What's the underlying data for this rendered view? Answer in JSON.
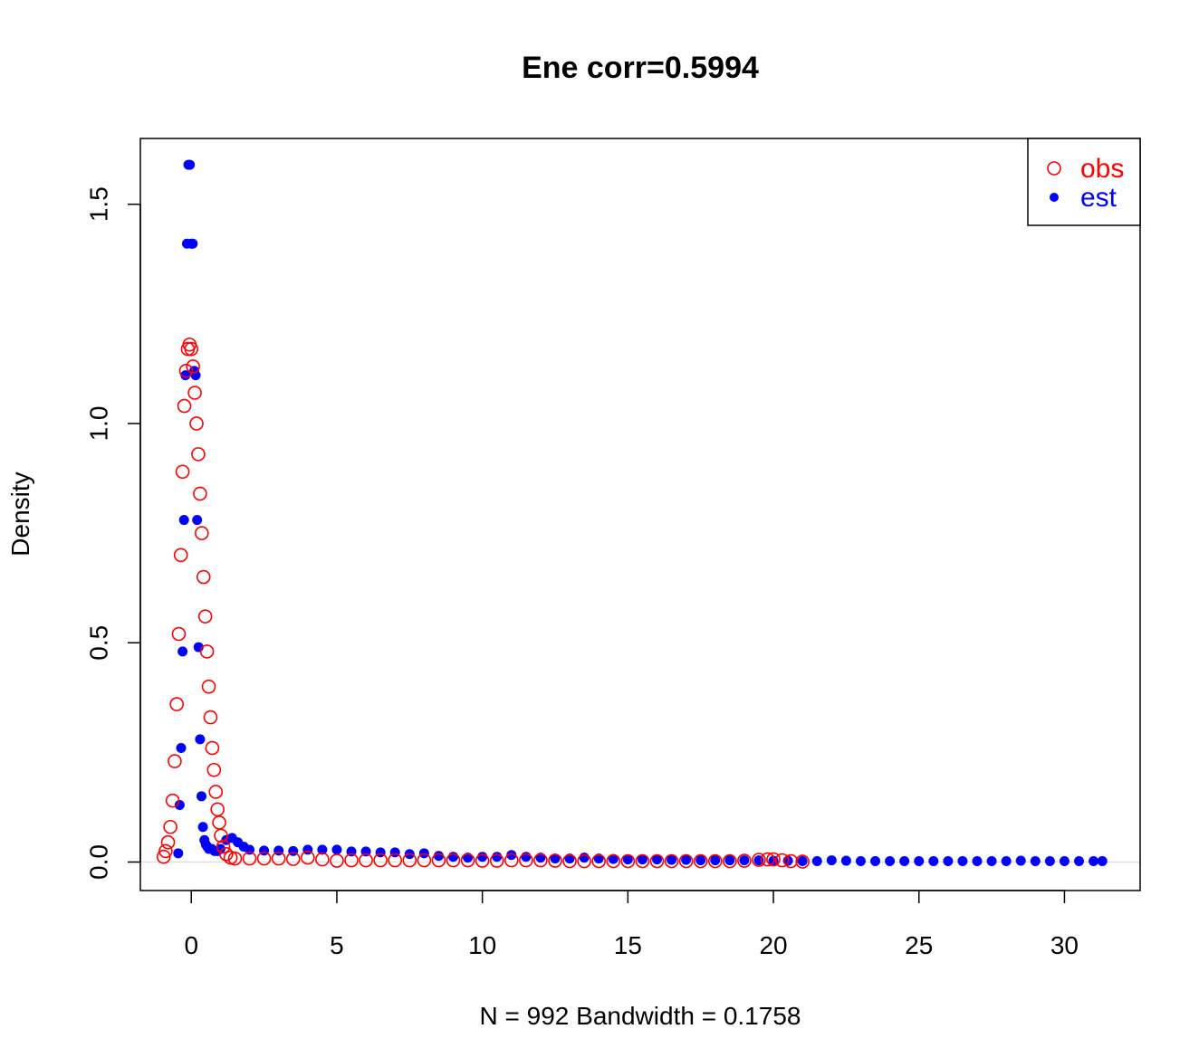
{
  "chart_data": {
    "type": "scatter",
    "title": "Ene corr=0.5994",
    "xlabel": "N = 992   Bandwidth = 0.1758",
    "ylabel": "Density",
    "xlim": [
      -1.75,
      32.6
    ],
    "ylim": [
      -0.065,
      1.65
    ],
    "xticks": [
      0,
      5,
      10,
      15,
      20,
      25,
      30
    ],
    "xtick_labels": [
      "0",
      "5",
      "10",
      "15",
      "20",
      "25",
      "30"
    ],
    "yticks": [
      0.0,
      0.5,
      1.0,
      1.5
    ],
    "ytick_labels": [
      "0.0",
      "0.5",
      "1.0",
      "1.5"
    ],
    "grid": false,
    "legend_position": "top-right",
    "colors": {
      "obs": "#ff0000",
      "est": "#0000ff"
    },
    "series": [
      {
        "name": "obs",
        "marker": "open-circle",
        "x": [
          -0.95,
          -0.88,
          -0.8,
          -0.72,
          -0.64,
          -0.57,
          -0.5,
          -0.43,
          -0.36,
          -0.3,
          -0.24,
          -0.18,
          -0.12,
          -0.06,
          0.0,
          0.06,
          0.12,
          0.18,
          0.24,
          0.3,
          0.36,
          0.42,
          0.48,
          0.54,
          0.6,
          0.66,
          0.72,
          0.78,
          0.84,
          0.9,
          0.96,
          1.02,
          1.1,
          1.2,
          1.35,
          1.5,
          2.0,
          2.5,
          3.0,
          3.5,
          4.0,
          4.5,
          5.0,
          5.5,
          6.0,
          6.5,
          7.0,
          7.5,
          8.0,
          8.5,
          9.0,
          9.5,
          10.0,
          10.5,
          11.0,
          11.5,
          12.0,
          12.5,
          13.0,
          13.5,
          14.0,
          14.5,
          15.0,
          15.5,
          16.0,
          16.5,
          17.0,
          17.5,
          18.0,
          18.5,
          19.0,
          19.5,
          19.8,
          20.0,
          20.3,
          20.6,
          21.0
        ],
        "y": [
          0.012,
          0.025,
          0.045,
          0.08,
          0.14,
          0.23,
          0.36,
          0.52,
          0.7,
          0.89,
          1.04,
          1.12,
          1.17,
          1.18,
          1.17,
          1.13,
          1.07,
          1.0,
          0.93,
          0.84,
          0.75,
          0.65,
          0.56,
          0.48,
          0.4,
          0.33,
          0.26,
          0.21,
          0.16,
          0.12,
          0.09,
          0.06,
          0.035,
          0.018,
          0.01,
          0.008,
          0.008,
          0.008,
          0.008,
          0.007,
          0.01,
          0.006,
          0.003,
          0.004,
          0.004,
          0.004,
          0.004,
          0.004,
          0.004,
          0.004,
          0.004,
          0.004,
          0.003,
          0.003,
          0.004,
          0.004,
          0.004,
          0.003,
          0.002,
          0.002,
          0.002,
          0.002,
          0.002,
          0.002,
          0.002,
          0.002,
          0.002,
          0.002,
          0.002,
          0.002,
          0.003,
          0.005,
          0.006,
          0.006,
          0.004,
          0.002,
          0.001
        ]
      },
      {
        "name": "est",
        "marker": "filled-circle",
        "x": [
          -0.45,
          -0.4,
          -0.35,
          -0.3,
          -0.25,
          -0.2,
          -0.15,
          -0.1,
          -0.05,
          0.0,
          0.05,
          0.1,
          0.15,
          0.2,
          0.25,
          0.3,
          0.35,
          0.4,
          0.45,
          0.5,
          0.55,
          0.6,
          0.7,
          0.8,
          0.9,
          1.0,
          1.2,
          1.4,
          1.6,
          1.8,
          2.0,
          2.5,
          3.0,
          3.5,
          4.0,
          4.5,
          5.0,
          5.5,
          6.0,
          6.5,
          7.0,
          7.5,
          8.0,
          8.5,
          9.0,
          9.5,
          10.0,
          10.5,
          11.0,
          11.5,
          12.0,
          12.5,
          13.0,
          13.5,
          14.0,
          14.5,
          15.0,
          15.5,
          16.0,
          16.5,
          17.0,
          17.5,
          18.0,
          18.5,
          19.0,
          19.5,
          20.0,
          20.5,
          21.0,
          21.5,
          22.0,
          22.5,
          23.0,
          23.5,
          24.0,
          24.5,
          25.0,
          25.5,
          26.0,
          26.5,
          27.0,
          27.5,
          28.0,
          28.5,
          29.0,
          29.5,
          30.0,
          30.5,
          31.0,
          31.3
        ],
        "y": [
          0.02,
          0.13,
          0.26,
          0.48,
          0.78,
          1.11,
          1.41,
          1.59,
          1.59,
          1.41,
          1.41,
          1.12,
          1.11,
          0.78,
          0.49,
          0.28,
          0.15,
          0.08,
          0.05,
          0.04,
          0.035,
          0.03,
          0.03,
          0.025,
          0.025,
          0.03,
          0.05,
          0.055,
          0.045,
          0.035,
          0.028,
          0.026,
          0.026,
          0.025,
          0.028,
          0.028,
          0.028,
          0.024,
          0.024,
          0.022,
          0.022,
          0.018,
          0.02,
          0.014,
          0.012,
          0.01,
          0.012,
          0.012,
          0.016,
          0.012,
          0.01,
          0.008,
          0.008,
          0.01,
          0.008,
          0.007,
          0.006,
          0.006,
          0.006,
          0.005,
          0.005,
          0.004,
          0.004,
          0.004,
          0.004,
          0.004,
          0.003,
          0.003,
          0.002,
          0.002,
          0.004,
          0.003,
          0.002,
          0.002,
          0.002,
          0.002,
          0.002,
          0.002,
          0.002,
          0.002,
          0.002,
          0.002,
          0.002,
          0.003,
          0.002,
          0.002,
          0.002,
          0.002,
          0.002,
          0.002
        ]
      }
    ]
  }
}
